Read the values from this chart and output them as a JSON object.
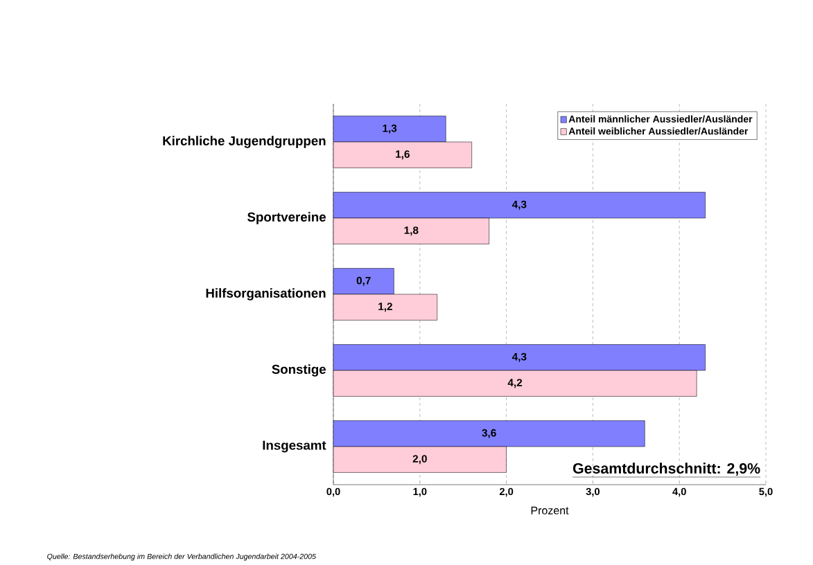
{
  "chart_data": {
    "type": "bar",
    "orientation": "horizontal",
    "categories": [
      "Kirchliche Jugendgruppen",
      "Sportvereine",
      "Hilfsorganisationen",
      "Sonstige",
      "Insgesamt"
    ],
    "series": [
      {
        "name": "Anteil männlicher Aussiedler/Ausländer",
        "color": "#8080ff",
        "values": [
          1.3,
          4.3,
          0.7,
          4.3,
          3.6
        ],
        "value_labels": [
          "1,3",
          "4,3",
          "0,7",
          "4,3",
          "3,6"
        ]
      },
      {
        "name": "Anteil weiblicher Aussiedler/Ausländer",
        "color": "#ffccd9",
        "values": [
          1.6,
          1.8,
          1.2,
          4.2,
          2.0
        ],
        "value_labels": [
          "1,6",
          "1,8",
          "1,2",
          "4,2",
          "2,0"
        ]
      }
    ],
    "xlabel": "Prozent",
    "xlim": [
      0,
      5
    ],
    "xticks": [
      {
        "value": 0,
        "label": "0,0"
      },
      {
        "value": 1,
        "label": "1,0"
      },
      {
        "value": 2,
        "label": "2,0"
      },
      {
        "value": 3,
        "label": "3,0"
      },
      {
        "value": 4,
        "label": "4,0"
      },
      {
        "value": 5,
        "label": "5,0"
      }
    ],
    "grid": "x",
    "legend": "top right",
    "annotations": [
      "Gesamtdurchschnitt: 2,9%",
      "Quelle: Bestandserhebung im Bereich der Verbandlichen Jugendarbeit 2004-2005"
    ]
  }
}
